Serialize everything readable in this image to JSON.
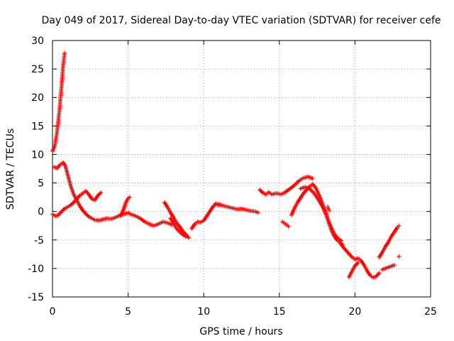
{
  "chart_data": {
    "type": "scatter",
    "title": "Day 049 of 2017, Sidereal Day-to-day VTEC variation (SDTVAR) for receiver cefe",
    "xlabel": "GPS time / hours",
    "ylabel": "SDTVAR / TECUs",
    "xlim": [
      0,
      25
    ],
    "ylim": [
      -15,
      30
    ],
    "xticks": [
      "0",
      "5",
      "10",
      "15",
      "20",
      "25"
    ],
    "yticks": [
      "-15",
      "-10",
      "-5",
      "0",
      "5",
      "10",
      "15",
      "20",
      "25",
      "30"
    ],
    "grid": true,
    "marker": "plus",
    "series_color": "#ff0000",
    "segments": [
      {
        "name": "steep-rise",
        "points": [
          [
            0.0,
            10.6
          ],
          [
            0.15,
            11.5
          ],
          [
            0.3,
            14.0
          ],
          [
            0.45,
            17.5
          ],
          [
            0.6,
            22.0
          ],
          [
            0.7,
            25.5
          ],
          [
            0.8,
            27.8
          ]
        ]
      },
      {
        "name": "early-bump",
        "points": [
          [
            0.1,
            7.8
          ],
          [
            0.3,
            7.6
          ],
          [
            0.5,
            8.2
          ],
          [
            0.7,
            8.6
          ],
          [
            0.85,
            8.0
          ],
          [
            1.0,
            6.5
          ],
          [
            1.2,
            4.5
          ],
          [
            1.4,
            3.0
          ],
          [
            1.6,
            2.0
          ],
          [
            1.8,
            1.0
          ],
          [
            2.0,
            0.2
          ],
          [
            2.2,
            -0.4
          ],
          [
            2.4,
            -0.9
          ],
          [
            2.6,
            -1.2
          ],
          [
            2.8,
            -1.5
          ],
          [
            3.0,
            -1.5
          ]
        ]
      },
      {
        "name": "early-rise",
        "points": [
          [
            0.0,
            -0.5
          ],
          [
            0.2,
            -0.8
          ],
          [
            0.4,
            -0.6
          ],
          [
            0.6,
            0.0
          ],
          [
            0.8,
            0.5
          ],
          [
            1.0,
            0.8
          ],
          [
            1.2,
            1.1
          ],
          [
            1.4,
            1.6
          ],
          [
            1.6,
            2.2
          ],
          [
            1.8,
            2.8
          ],
          [
            2.0,
            3.2
          ],
          [
            2.2,
            3.6
          ],
          [
            2.4,
            3.0
          ],
          [
            2.6,
            2.2
          ],
          [
            2.8,
            2.0
          ],
          [
            3.0,
            2.8
          ],
          [
            3.2,
            3.3
          ]
        ]
      },
      {
        "name": "morning-trough",
        "points": [
          [
            3.0,
            -1.6
          ],
          [
            3.3,
            -1.4
          ],
          [
            3.6,
            -1.2
          ],
          [
            3.9,
            -1.3
          ],
          [
            4.2,
            -1.0
          ],
          [
            4.5,
            -0.6
          ],
          [
            4.8,
            -0.4
          ],
          [
            5.0,
            -0.2
          ],
          [
            5.2,
            -0.5
          ],
          [
            5.5,
            -0.8
          ],
          [
            5.8,
            -1.2
          ],
          [
            6.1,
            -1.8
          ],
          [
            6.4,
            -2.2
          ],
          [
            6.7,
            -2.5
          ],
          [
            7.0,
            -2.2
          ],
          [
            7.3,
            -1.8
          ],
          [
            7.6,
            -2.0
          ],
          [
            7.9,
            -2.3
          ]
        ]
      },
      {
        "name": "spike-5",
        "points": [
          [
            4.5,
            -0.8
          ],
          [
            4.7,
            0.4
          ],
          [
            4.85,
            1.6
          ],
          [
            5.0,
            2.3
          ],
          [
            5.1,
            2.5
          ]
        ]
      },
      {
        "name": "evening-fall",
        "points": [
          [
            7.4,
            1.6
          ],
          [
            7.6,
            0.8
          ],
          [
            7.8,
            -0.2
          ],
          [
            8.0,
            -1.0
          ],
          [
            8.2,
            -2.0
          ],
          [
            8.4,
            -2.6
          ],
          [
            8.6,
            -3.4
          ],
          [
            8.8,
            -4.0
          ],
          [
            9.0,
            -4.6
          ]
        ]
      },
      {
        "name": "dip-9",
        "points": [
          [
            7.8,
            -1.2
          ],
          [
            8.0,
            -2.0
          ],
          [
            8.2,
            -3.0
          ],
          [
            8.5,
            -3.8
          ],
          [
            8.8,
            -4.4
          ]
        ]
      },
      {
        "name": "recovery-10",
        "points": [
          [
            9.2,
            -3.0
          ],
          [
            9.4,
            -2.2
          ],
          [
            9.6,
            -1.8
          ],
          [
            9.8,
            -1.9
          ],
          [
            10.0,
            -1.6
          ],
          [
            10.2,
            -0.8
          ],
          [
            10.4,
            0.0
          ],
          [
            10.6,
            0.8
          ],
          [
            10.8,
            1.4
          ],
          [
            11.0,
            1.1
          ]
        ]
      },
      {
        "name": "flat-12",
        "points": [
          [
            11.0,
            1.3
          ],
          [
            11.3,
            1.0
          ],
          [
            11.6,
            0.8
          ],
          [
            11.9,
            0.6
          ],
          [
            12.2,
            0.4
          ],
          [
            12.5,
            0.5
          ],
          [
            12.8,
            0.3
          ],
          [
            13.1,
            0.1
          ],
          [
            13.4,
            0.0
          ],
          [
            13.6,
            -0.2
          ]
        ]
      },
      {
        "name": "afternoon-bump",
        "points": [
          [
            13.7,
            3.8
          ],
          [
            13.9,
            3.3
          ],
          [
            14.1,
            3.0
          ],
          [
            14.3,
            3.4
          ],
          [
            14.5,
            3.0
          ],
          [
            14.8,
            3.2
          ],
          [
            15.1,
            3.0
          ],
          [
            15.4,
            3.4
          ],
          [
            15.7,
            4.0
          ],
          [
            16.0,
            4.6
          ],
          [
            16.3,
            5.4
          ],
          [
            16.6,
            5.9
          ],
          [
            16.9,
            6.1
          ],
          [
            17.2,
            5.8
          ]
        ]
      },
      {
        "name": "small-dip-15",
        "points": [
          [
            15.2,
            -1.8
          ],
          [
            15.4,
            -2.2
          ],
          [
            15.6,
            -2.6
          ]
        ]
      },
      {
        "name": "afternoon-peak",
        "points": [
          [
            15.8,
            -0.6
          ],
          [
            16.0,
            0.6
          ],
          [
            16.2,
            1.6
          ],
          [
            16.4,
            2.4
          ],
          [
            16.6,
            3.2
          ],
          [
            16.8,
            3.8
          ],
          [
            17.0,
            4.4
          ],
          [
            17.2,
            4.8
          ],
          [
            17.4,
            4.2
          ],
          [
            17.6,
            3.0
          ],
          [
            17.8,
            1.8
          ],
          [
            18.0,
            0.4
          ],
          [
            18.2,
            -1.4
          ],
          [
            18.4,
            -3.0
          ],
          [
            18.6,
            -4.2
          ],
          [
            18.8,
            -5.0
          ],
          [
            19.0,
            -5.4
          ],
          [
            19.2,
            -5.8
          ]
        ]
      },
      {
        "name": "second-fall",
        "points": [
          [
            16.4,
            4.0
          ],
          [
            16.7,
            4.3
          ],
          [
            17.0,
            4.0
          ],
          [
            17.3,
            3.2
          ],
          [
            17.6,
            2.0
          ],
          [
            17.9,
            0.6
          ],
          [
            18.1,
            -0.6
          ],
          [
            18.3,
            -2.0
          ],
          [
            18.5,
            -3.2
          ],
          [
            18.7,
            -4.2
          ],
          [
            18.9,
            -4.8
          ],
          [
            19.1,
            -5.1
          ]
        ]
      },
      {
        "name": "spike-18",
        "points": [
          [
            18.2,
            0.8
          ],
          [
            18.3,
            0.2
          ]
        ]
      },
      {
        "name": "late-rise",
        "points": [
          [
            19.0,
            -5.4
          ],
          [
            19.2,
            -6.2
          ],
          [
            19.4,
            -6.8
          ],
          [
            19.6,
            -7.4
          ],
          [
            19.8,
            -8.0
          ],
          [
            20.0,
            -8.4
          ],
          [
            20.2,
            -8.2
          ],
          [
            20.4,
            -8.6
          ],
          [
            20.6,
            -9.4
          ],
          [
            20.8,
            -10.4
          ],
          [
            21.0,
            -11.2
          ],
          [
            21.2,
            -11.6
          ],
          [
            21.4,
            -11.4
          ],
          [
            21.6,
            -10.8
          ]
        ]
      },
      {
        "name": "late-fall",
        "points": [
          [
            19.6,
            -11.5
          ],
          [
            19.8,
            -10.5
          ],
          [
            20.0,
            -9.5
          ],
          [
            20.2,
            -9.0
          ]
        ]
      },
      {
        "name": "final-rise",
        "points": [
          [
            21.6,
            -8.0
          ],
          [
            21.8,
            -7.2
          ],
          [
            22.0,
            -6.2
          ],
          [
            22.2,
            -5.4
          ],
          [
            22.4,
            -4.4
          ],
          [
            22.6,
            -3.6
          ],
          [
            22.8,
            -2.8
          ],
          [
            22.9,
            -2.5
          ]
        ]
      },
      {
        "name": "final-low",
        "points": [
          [
            21.8,
            -10.2
          ],
          [
            22.1,
            -9.9
          ],
          [
            22.4,
            -9.6
          ],
          [
            22.6,
            -9.4
          ]
        ]
      },
      {
        "name": "final-point",
        "points": [
          [
            22.9,
            -7.9
          ]
        ]
      }
    ]
  }
}
